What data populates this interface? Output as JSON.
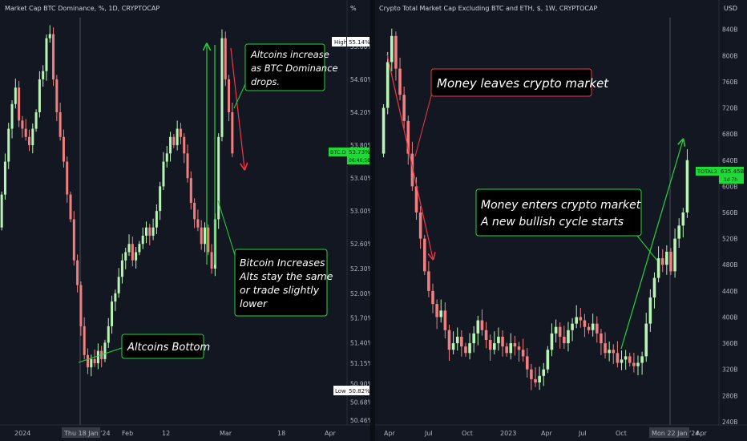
{
  "colors": {
    "background": "#131722",
    "up": "#b8f5b5",
    "down": "#f08080",
    "accent_green": "#22d73a",
    "accent_red": "#f23645",
    "grid": "#2a2e39",
    "text": "#b2b5be"
  },
  "left_panel": {
    "header": "Market Cap BTC Dominance, %, 1D, CRYPTOCAP",
    "axis_unit": "%",
    "high_label": "High",
    "high_value": "55.14%",
    "low_label": "Low",
    "low_value": "50.82%",
    "ticker_label": "BTC.D",
    "ticker_value": "53.73%",
    "ticker_countdown": "06:46:58",
    "cursor_date": "Thu 18 Jan '24",
    "annotations": {
      "altcoins_increase": [
        "Altcoins increase",
        "as BTC Dominance",
        "drops."
      ],
      "bitcoin_increases": [
        "Bitcoin Increases",
        "Alts stay the same",
        "or trade slightly",
        "lower"
      ],
      "altcoins_bottom": "Altcoins Bottom"
    }
  },
  "right_panel": {
    "header": "Crypto Total Market Cap Excluding BTC and ETH, $, 1W, CRYPTOCAP",
    "axis_unit": "USD",
    "ticker_label": "TOTAL3",
    "ticker_value": "635.45B",
    "ticker_countdown": "1d 7h",
    "cursor_date": "Mon 22 Jan '24",
    "annotations": {
      "money_leaves": "Money leaves crypto market",
      "money_enters": [
        "Money enters crypto market",
        "A new bullish cycle starts"
      ]
    }
  },
  "chart_data": [
    {
      "type": "candlestick",
      "title": "Market Cap BTC Dominance, %, 1D, CRYPTOCAP",
      "ylabel": "%",
      "ylim": [
        50.4,
        55.35
      ],
      "y_ticks": [
        "55.00%",
        "54.60%",
        "54.20%",
        "53.80%",
        "53.40%",
        "53.00%",
        "52.60%",
        "52.30%",
        "52.00%",
        "51.70%",
        "51.40%",
        "51.15%",
        "50.90%",
        "50.68%",
        "50.46%"
      ],
      "x_ticks": [
        "2024",
        "Feb",
        "12",
        "Mar",
        "18",
        "Apr"
      ],
      "series": [
        {
          "name": "BTC.D",
          "close": [
            53.2,
            53.6,
            54.0,
            54.3,
            54.5,
            54.1,
            54.0,
            53.9,
            53.8,
            54.0,
            54.2,
            54.6,
            54.7,
            55.1,
            55.15,
            54.6,
            54.2,
            53.9,
            53.6,
            53.2,
            52.9,
            52.4,
            52.1,
            51.6,
            51.25,
            51.1,
            51.2,
            51.15,
            51.3,
            51.2,
            51.4,
            51.6,
            51.9,
            52.0,
            52.2,
            52.4,
            52.5,
            52.6,
            52.4,
            52.5,
            52.6,
            52.7,
            52.8,
            52.7,
            52.8,
            53.0,
            53.3,
            53.6,
            53.7,
            53.9,
            53.8,
            54.0,
            53.9,
            53.7,
            53.4,
            53.1,
            52.9,
            52.8,
            52.6,
            52.8,
            52.5,
            52.3,
            52.9,
            53.9,
            55.1,
            54.6,
            54.2,
            53.7
          ],
          "low_min": 50.82,
          "high_max": 55.14
        }
      ]
    },
    {
      "type": "candlestick",
      "title": "Crypto Total Market Cap Excluding BTC and ETH, $, 1W, CRYPTOCAP",
      "ylabel": "USD",
      "ylim": [
        235,
        858
      ],
      "y_ticks": [
        "840B",
        "800B",
        "760B",
        "720B",
        "680B",
        "640B",
        "600B",
        "560B",
        "520B",
        "480B",
        "440B",
        "400B",
        "360B",
        "320B",
        "280B",
        "240B"
      ],
      "x_ticks": [
        "Apr",
        "Jul",
        "Oct",
        "2023",
        "Apr",
        "Jul",
        "Oct",
        "Apr"
      ],
      "series": [
        {
          "name": "TOTAL3",
          "close": [
            720,
            790,
            830,
            780,
            740,
            700,
            650,
            600,
            560,
            520,
            470,
            440,
            420,
            400,
            410,
            380,
            350,
            360,
            370,
            355,
            345,
            360,
            375,
            395,
            380,
            365,
            350,
            360,
            370,
            355,
            345,
            360,
            355,
            350,
            340,
            320,
            305,
            300,
            310,
            320,
            350,
            375,
            385,
            370,
            360,
            380,
            390,
            400,
            395,
            385,
            380,
            390,
            375,
            360,
            345,
            350,
            345,
            330,
            335,
            340,
            330,
            325,
            330,
            340,
            390,
            430,
            460,
            490,
            480,
            500,
            470,
            520,
            540,
            560,
            640
          ],
          "last": "635.45B"
        }
      ]
    }
  ]
}
